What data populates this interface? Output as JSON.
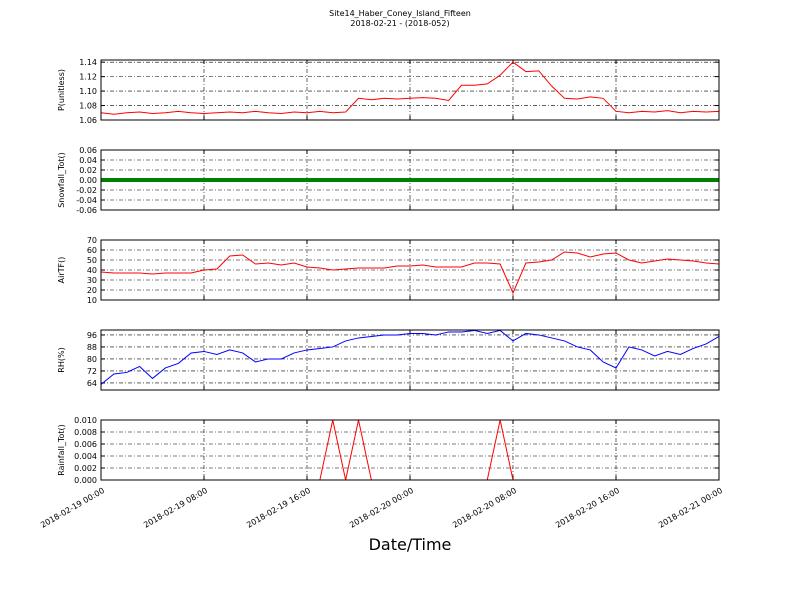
{
  "title": "Site14_Haber_Coney_Island_Fifteen",
  "subtitle": "2018-02-21 - (2018-052)",
  "chart_data": [
    {
      "type": "line",
      "ylabel": "P(unitless)",
      "color": "#ff0000",
      "grid": true,
      "xlim": [
        "2018-02-19 00:00",
        "2018-02-21 00:00"
      ],
      "ylim": [
        1.06,
        1.143
      ],
      "yticks": [
        1.06,
        1.08,
        {
          "value": 1.1,
          "label": "1.10"
        },
        1.12,
        1.14
      ],
      "x": [
        "2018-02-19 00:00",
        "2018-02-19 01:00",
        "2018-02-19 02:00",
        "2018-02-19 03:00",
        "2018-02-19 04:00",
        "2018-02-19 05:00",
        "2018-02-19 06:00",
        "2018-02-19 07:00",
        "2018-02-19 08:00",
        "2018-02-19 09:00",
        "2018-02-19 10:00",
        "2018-02-19 11:00",
        "2018-02-19 12:00",
        "2018-02-19 13:00",
        "2018-02-19 14:00",
        "2018-02-19 15:00",
        "2018-02-19 16:00",
        "2018-02-19 17:00",
        "2018-02-19 18:00",
        "2018-02-19 19:00",
        "2018-02-19 20:00",
        "2018-02-19 21:00",
        "2018-02-19 22:00",
        "2018-02-19 23:00",
        "2018-02-20 00:00",
        "2018-02-20 01:00",
        "2018-02-20 02:00",
        "2018-02-20 03:00",
        "2018-02-20 04:00",
        "2018-02-20 05:00",
        "2018-02-20 06:00",
        "2018-02-20 07:00",
        "2018-02-20 08:00",
        "2018-02-20 09:00",
        "2018-02-20 10:00",
        "2018-02-20 11:00",
        "2018-02-20 12:00",
        "2018-02-20 13:00",
        "2018-02-20 14:00",
        "2018-02-20 15:00",
        "2018-02-20 16:00",
        "2018-02-20 17:00",
        "2018-02-20 18:00",
        "2018-02-20 19:00",
        "2018-02-20 20:00",
        "2018-02-20 21:00",
        "2018-02-20 22:00",
        "2018-02-20 23:00",
        "2018-02-21 00:00"
      ],
      "values": [
        1.07,
        1.068,
        1.07,
        1.071,
        1.069,
        1.07,
        1.072,
        1.07,
        1.069,
        1.07,
        1.071,
        1.07,
        1.072,
        1.07,
        1.069,
        1.071,
        1.07,
        1.072,
        1.07,
        1.071,
        1.09,
        1.088,
        1.09,
        1.089,
        1.09,
        1.091,
        1.09,
        1.087,
        1.108,
        1.108,
        1.11,
        1.122,
        1.14,
        1.127,
        1.128,
        1.107,
        1.09,
        1.089,
        1.092,
        1.09,
        1.072,
        1.07,
        1.072,
        1.071,
        1.073,
        1.07,
        1.072,
        1.071,
        1.072
      ]
    },
    {
      "type": "line",
      "ylabel": "Snowfall_Tot()",
      "color": "#008000",
      "grid": true,
      "xlim": [
        "2018-02-19 00:00",
        "2018-02-21 00:00"
      ],
      "ylim": [
        -0.06,
        0.06
      ],
      "yticks": [
        -0.06,
        -0.04,
        -0.02,
        {
          "value": 0,
          "label": "0.00"
        },
        0.02,
        0.04,
        0.06
      ],
      "x": [
        "2018-02-19 00:00",
        "2018-02-19 01:00",
        "2018-02-19 02:00",
        "2018-02-19 03:00",
        "2018-02-19 04:00",
        "2018-02-19 05:00",
        "2018-02-19 06:00",
        "2018-02-19 07:00",
        "2018-02-19 08:00",
        "2018-02-19 09:00",
        "2018-02-19 10:00",
        "2018-02-19 11:00",
        "2018-02-19 12:00",
        "2018-02-19 13:00",
        "2018-02-19 14:00",
        "2018-02-19 15:00",
        "2018-02-19 16:00",
        "2018-02-19 17:00",
        "2018-02-19 18:00",
        "2018-02-19 19:00",
        "2018-02-19 20:00",
        "2018-02-19 21:00",
        "2018-02-19 22:00",
        "2018-02-19 23:00",
        "2018-02-20 00:00",
        "2018-02-20 01:00",
        "2018-02-20 02:00",
        "2018-02-20 03:00",
        "2018-02-20 04:00",
        "2018-02-20 05:00",
        "2018-02-20 06:00",
        "2018-02-20 07:00",
        "2018-02-20 08:00",
        "2018-02-20 09:00",
        "2018-02-20 10:00",
        "2018-02-20 11:00",
        "2018-02-20 12:00",
        "2018-02-20 13:00",
        "2018-02-20 14:00",
        "2018-02-20 15:00",
        "2018-02-20 16:00",
        "2018-02-20 17:00",
        "2018-02-20 18:00",
        "2018-02-20 19:00",
        "2018-02-20 20:00",
        "2018-02-20 21:00",
        "2018-02-20 22:00",
        "2018-02-20 23:00",
        "2018-02-21 00:00"
      ],
      "values": [
        0,
        0,
        0,
        0,
        0,
        0,
        0,
        0,
        0,
        0,
        0,
        0,
        0,
        0,
        0,
        0,
        0,
        0,
        0,
        0,
        0,
        0,
        0,
        0,
        0,
        0,
        0,
        0,
        0,
        0,
        0,
        0,
        0,
        0,
        0,
        0,
        0,
        0,
        0,
        0,
        0,
        0,
        0,
        0,
        0,
        0,
        0,
        0,
        0
      ]
    },
    {
      "type": "line",
      "ylabel": "AirTF()",
      "color": "#ff0000",
      "grid": true,
      "xlim": [
        "2018-02-19 00:00",
        "2018-02-21 00:00"
      ],
      "ylim": [
        10,
        70
      ],
      "yticks": [
        10,
        20,
        30,
        40,
        50,
        60,
        70
      ],
      "x": [
        "2018-02-19 00:00",
        "2018-02-19 01:00",
        "2018-02-19 02:00",
        "2018-02-19 03:00",
        "2018-02-19 04:00",
        "2018-02-19 05:00",
        "2018-02-19 06:00",
        "2018-02-19 07:00",
        "2018-02-19 08:00",
        "2018-02-19 09:00",
        "2018-02-19 10:00",
        "2018-02-19 11:00",
        "2018-02-19 12:00",
        "2018-02-19 13:00",
        "2018-02-19 14:00",
        "2018-02-19 15:00",
        "2018-02-19 16:00",
        "2018-02-19 17:00",
        "2018-02-19 18:00",
        "2018-02-19 19:00",
        "2018-02-19 20:00",
        "2018-02-19 21:00",
        "2018-02-19 22:00",
        "2018-02-19 23:00",
        "2018-02-20 00:00",
        "2018-02-20 01:00",
        "2018-02-20 02:00",
        "2018-02-20 03:00",
        "2018-02-20 04:00",
        "2018-02-20 05:00",
        "2018-02-20 06:00",
        "2018-02-20 07:00",
        "2018-02-20 08:00",
        "2018-02-20 09:00",
        "2018-02-20 10:00",
        "2018-02-20 11:00",
        "2018-02-20 12:00",
        "2018-02-20 13:00",
        "2018-02-20 14:00",
        "2018-02-20 15:00",
        "2018-02-20 16:00",
        "2018-02-20 17:00",
        "2018-02-20 18:00",
        "2018-02-20 19:00",
        "2018-02-20 20:00",
        "2018-02-20 21:00",
        "2018-02-20 22:00",
        "2018-02-20 23:00",
        "2018-02-21 00:00"
      ],
      "values": [
        38,
        37,
        37,
        37,
        36,
        37,
        37,
        37,
        40,
        41,
        54,
        55,
        46,
        47,
        45,
        47,
        43,
        42,
        40,
        41,
        42,
        42,
        42,
        44,
        44,
        45,
        43,
        43,
        43,
        47,
        47,
        46,
        17,
        47,
        48,
        50,
        58,
        57,
        53,
        56,
        57,
        50,
        47,
        49,
        51,
        50,
        49,
        47,
        46
      ]
    },
    {
      "type": "line",
      "ylabel": "RH(%)",
      "color": "#0000ff",
      "grid": true,
      "xlim": [
        "2018-02-19 00:00",
        "2018-02-21 00:00"
      ],
      "ylim": [
        59.3,
        99.3
      ],
      "yticks": [
        64,
        72,
        80,
        88,
        96
      ],
      "x": [
        "2018-02-19 00:00",
        "2018-02-19 01:00",
        "2018-02-19 02:00",
        "2018-02-19 03:00",
        "2018-02-19 04:00",
        "2018-02-19 05:00",
        "2018-02-19 06:00",
        "2018-02-19 07:00",
        "2018-02-19 08:00",
        "2018-02-19 09:00",
        "2018-02-19 10:00",
        "2018-02-19 11:00",
        "2018-02-19 12:00",
        "2018-02-19 13:00",
        "2018-02-19 14:00",
        "2018-02-19 15:00",
        "2018-02-19 16:00",
        "2018-02-19 17:00",
        "2018-02-19 18:00",
        "2018-02-19 19:00",
        "2018-02-19 20:00",
        "2018-02-19 21:00",
        "2018-02-19 22:00",
        "2018-02-19 23:00",
        "2018-02-20 00:00",
        "2018-02-20 01:00",
        "2018-02-20 02:00",
        "2018-02-20 03:00",
        "2018-02-20 04:00",
        "2018-02-20 05:00",
        "2018-02-20 06:00",
        "2018-02-20 07:00",
        "2018-02-20 08:00",
        "2018-02-20 09:00",
        "2018-02-20 10:00",
        "2018-02-20 11:00",
        "2018-02-20 12:00",
        "2018-02-20 13:00",
        "2018-02-20 14:00",
        "2018-02-20 15:00",
        "2018-02-20 16:00",
        "2018-02-20 17:00",
        "2018-02-20 18:00",
        "2018-02-20 19:00",
        "2018-02-20 20:00",
        "2018-02-20 21:00",
        "2018-02-20 22:00",
        "2018-02-20 23:00",
        "2018-02-21 00:00"
      ],
      "values": [
        63,
        70,
        71,
        75,
        67,
        74,
        77,
        84,
        85,
        83,
        86,
        84,
        78,
        80,
        80,
        84,
        86,
        87,
        88,
        92,
        94,
        95,
        96,
        96,
        97,
        97,
        96,
        98,
        98,
        99,
        97,
        99,
        92,
        97,
        96,
        94,
        92,
        88,
        86,
        78,
        74,
        88,
        86,
        82,
        85,
        83,
        87,
        90,
        95
      ]
    },
    {
      "type": "line",
      "ylabel": "Rainfall_Tot()",
      "color": "#ff0000",
      "grid": true,
      "xlabel": "Date/Time",
      "xlim": [
        "2018-02-19 00:00",
        "2018-02-21 00:00"
      ],
      "ylim": [
        0,
        0.01
      ],
      "yticks": [
        {
          "value": 0,
          "label": "0.000"
        },
        {
          "value": 0.002,
          "label": "0.002"
        },
        {
          "value": 0.004,
          "label": "0.004"
        },
        {
          "value": 0.006,
          "label": "0.006"
        },
        {
          "value": 0.008,
          "label": "0.008"
        },
        {
          "value": 0.01,
          "label": "0.010"
        }
      ],
      "xticks": [
        "2018-02-19 00:00",
        "2018-02-19 08:00",
        "2018-02-19 16:00",
        "2018-02-20 00:00",
        "2018-02-20 08:00",
        "2018-02-20 16:00",
        "2018-02-21 00:00"
      ],
      "x": [
        "2018-02-19 00:00",
        "2018-02-19 01:00",
        "2018-02-19 02:00",
        "2018-02-19 03:00",
        "2018-02-19 04:00",
        "2018-02-19 05:00",
        "2018-02-19 06:00",
        "2018-02-19 07:00",
        "2018-02-19 08:00",
        "2018-02-19 09:00",
        "2018-02-19 10:00",
        "2018-02-19 11:00",
        "2018-02-19 12:00",
        "2018-02-19 13:00",
        "2018-02-19 14:00",
        "2018-02-19 15:00",
        "2018-02-19 16:00",
        "2018-02-19 17:00",
        "2018-02-19 18:00",
        "2018-02-19 19:00",
        "2018-02-19 20:00",
        "2018-02-19 21:00",
        "2018-02-19 22:00",
        "2018-02-19 23:00",
        "2018-02-20 00:00",
        "2018-02-20 01:00",
        "2018-02-20 02:00",
        "2018-02-20 03:00",
        "2018-02-20 04:00",
        "2018-02-20 05:00",
        "2018-02-20 06:00",
        "2018-02-20 07:00",
        "2018-02-20 08:00",
        "2018-02-20 09:00",
        "2018-02-20 10:00",
        "2018-02-20 11:00",
        "2018-02-20 12:00",
        "2018-02-20 13:00",
        "2018-02-20 14:00",
        "2018-02-20 15:00",
        "2018-02-20 16:00",
        "2018-02-20 17:00",
        "2018-02-20 18:00",
        "2018-02-20 19:00",
        "2018-02-20 20:00",
        "2018-02-20 21:00",
        "2018-02-20 22:00",
        "2018-02-20 23:00",
        "2018-02-21 00:00"
      ],
      "values": [
        0,
        0,
        0,
        0,
        0,
        0,
        0,
        0,
        0,
        0,
        0,
        0,
        0,
        0,
        0,
        0,
        0,
        0,
        0.01,
        0,
        0.01,
        0,
        0,
        0,
        0,
        0,
        0,
        0,
        0,
        0,
        0,
        0.01,
        0,
        0,
        0,
        0,
        0,
        0,
        0,
        0,
        0,
        0,
        0,
        0,
        0,
        0,
        0,
        0,
        0
      ]
    }
  ]
}
